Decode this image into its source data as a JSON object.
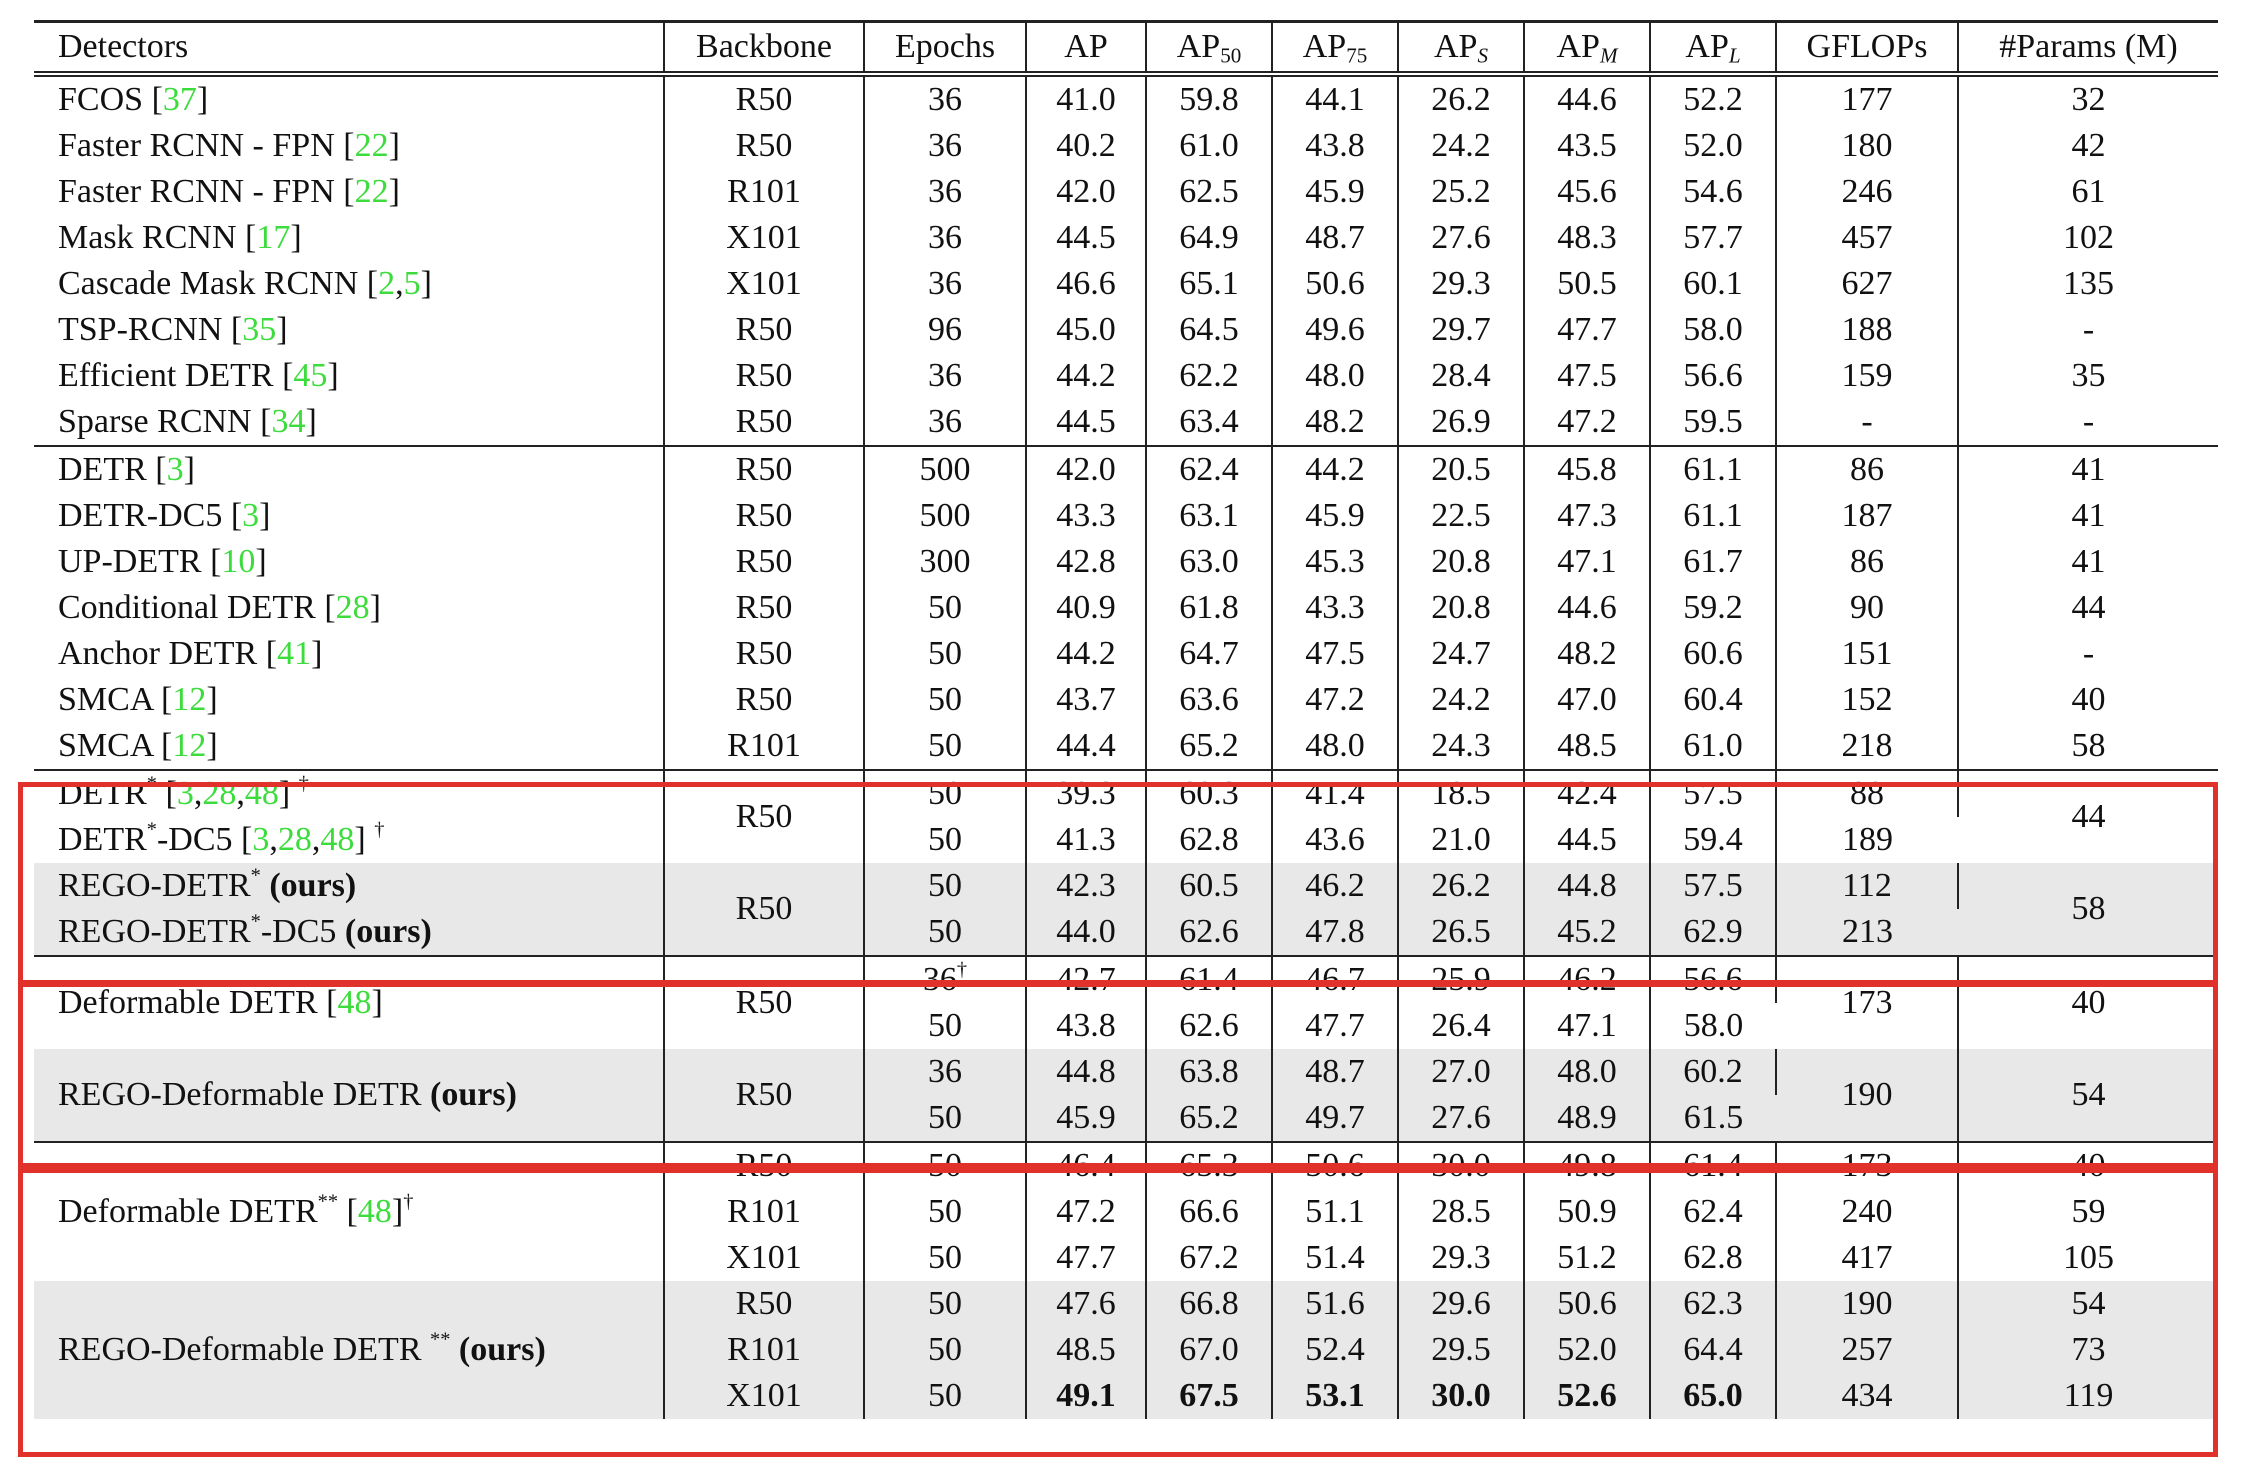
{
  "headers": [
    "Detectors",
    "Backbone",
    "Epochs",
    "AP",
    "AP",
    "AP",
    "AP",
    "AP",
    "AP",
    "GFLOPs",
    "#Params (M)"
  ],
  "header_subs": [
    "50",
    "75",
    "S",
    "M",
    "L"
  ],
  "marks": {
    "star": "*",
    "dstar": "**",
    "dagger": "†",
    "ours": "(ours)",
    "lbr": "[",
    "rbr": "]",
    "comma": ","
  },
  "top_rows": [
    {
      "name": "FCOS",
      "refs": [
        "37"
      ],
      "backbone": "R50",
      "epochs": "36",
      "vals": [
        "41.0",
        "59.8",
        "44.1",
        "26.2",
        "44.6",
        "52.2",
        "177",
        "32"
      ]
    },
    {
      "name": "Faster RCNN - FPN",
      "refs": [
        "22"
      ],
      "backbone": "R50",
      "epochs": "36",
      "vals": [
        "40.2",
        "61.0",
        "43.8",
        "24.2",
        "43.5",
        "52.0",
        "180",
        "42"
      ]
    },
    {
      "name": "Faster RCNN - FPN",
      "refs": [
        "22"
      ],
      "backbone": "R101",
      "epochs": "36",
      "vals": [
        "42.0",
        "62.5",
        "45.9",
        "25.2",
        "45.6",
        "54.6",
        "246",
        "61"
      ]
    },
    {
      "name": "Mask RCNN",
      "refs": [
        "17"
      ],
      "backbone": "X101",
      "epochs": "36",
      "vals": [
        "44.5",
        "64.9",
        "48.7",
        "27.6",
        "48.3",
        "57.7",
        "457",
        "102"
      ]
    },
    {
      "name": "Cascade Mask RCNN",
      "refs": [
        "2",
        "5"
      ],
      "backbone": "X101",
      "epochs": "36",
      "vals": [
        "46.6",
        "65.1",
        "50.6",
        "29.3",
        "50.5",
        "60.1",
        "627",
        "135"
      ]
    },
    {
      "name": "TSP-RCNN",
      "refs": [
        "35"
      ],
      "backbone": "R50",
      "epochs": "96",
      "vals": [
        "45.0",
        "64.5",
        "49.6",
        "29.7",
        "47.7",
        "58.0",
        "188",
        "-"
      ]
    },
    {
      "name": "Efficient DETR",
      "refs": [
        "45"
      ],
      "backbone": "R50",
      "epochs": "36",
      "vals": [
        "44.2",
        "62.2",
        "48.0",
        "28.4",
        "47.5",
        "56.6",
        "159",
        "35"
      ]
    },
    {
      "name": "Sparse RCNN",
      "refs": [
        "34"
      ],
      "backbone": "R50",
      "epochs": "36",
      "vals": [
        "44.5",
        "63.4",
        "48.2",
        "26.9",
        "47.2",
        "59.5",
        "-",
        "-"
      ]
    }
  ],
  "mid_rows": [
    {
      "name": "DETR",
      "refs": [
        "3"
      ],
      "backbone": "R50",
      "epochs": "500",
      "vals": [
        "42.0",
        "62.4",
        "44.2",
        "20.5",
        "45.8",
        "61.1",
        "86",
        "41"
      ]
    },
    {
      "name": "DETR-DC5",
      "refs": [
        "3"
      ],
      "backbone": "R50",
      "epochs": "500",
      "vals": [
        "43.3",
        "63.1",
        "45.9",
        "22.5",
        "47.3",
        "61.1",
        "187",
        "41"
      ]
    },
    {
      "name": "UP-DETR",
      "refs": [
        "10"
      ],
      "backbone": "R50",
      "epochs": "300",
      "vals": [
        "42.8",
        "63.0",
        "45.3",
        "20.8",
        "47.1",
        "61.7",
        "86",
        "41"
      ]
    },
    {
      "name": "Conditional DETR",
      "refs": [
        "28"
      ],
      "backbone": "R50",
      "epochs": "50",
      "vals": [
        "40.9",
        "61.8",
        "43.3",
        "20.8",
        "44.6",
        "59.2",
        "90",
        "44"
      ]
    },
    {
      "name": "Anchor DETR",
      "refs": [
        "41"
      ],
      "backbone": "R50",
      "epochs": "50",
      "vals": [
        "44.2",
        "64.7",
        "47.5",
        "24.7",
        "48.2",
        "60.6",
        "151",
        "-"
      ]
    },
    {
      "name": "SMCA",
      "refs": [
        "12"
      ],
      "backbone": "R50",
      "epochs": "50",
      "vals": [
        "43.7",
        "63.6",
        "47.2",
        "24.2",
        "47.0",
        "60.4",
        "152",
        "40"
      ]
    },
    {
      "name": "SMCA",
      "refs": [
        "12"
      ],
      "backbone": "R101",
      "epochs": "50",
      "vals": [
        "44.4",
        "65.2",
        "48.0",
        "24.3",
        "48.5",
        "61.0",
        "218",
        "58"
      ]
    }
  ],
  "g1": {
    "a_backbone": "R50",
    "a_params": "44",
    "a_rows": [
      {
        "pre": "DETR",
        "post": "",
        "refs": [
          "3",
          "28",
          "48"
        ],
        "epochs": "50",
        "vals": [
          "39.3",
          "60.3",
          "41.4",
          "18.5",
          "42.4",
          "57.5"
        ],
        "gflops": "88"
      },
      {
        "pre": "DETR",
        "post": "-DC5",
        "refs": [
          "3",
          "28",
          "48"
        ],
        "epochs": "50",
        "vals": [
          "41.3",
          "62.8",
          "43.6",
          "21.0",
          "44.5",
          "59.4"
        ],
        "gflops": "189"
      }
    ],
    "b_backbone": "R50",
    "b_params": "58",
    "b_rows": [
      {
        "pre": "REGO-DETR",
        "post": "",
        "epochs": "50",
        "vals": [
          "42.3",
          "60.5",
          "46.2",
          "26.2",
          "44.8",
          "57.5"
        ],
        "gflops": "112"
      },
      {
        "pre": "REGO-DETR",
        "post": "-DC5",
        "epochs": "50",
        "vals": [
          "44.0",
          "62.6",
          "47.8",
          "26.5",
          "45.2",
          "62.9"
        ],
        "gflops": "213"
      }
    ]
  },
  "g2": {
    "a_name": "Deformable DETR",
    "a_refs": [
      "48"
    ],
    "a_backbone": "R50",
    "a_gflops": "173",
    "a_params": "40",
    "a_rows": [
      {
        "epochs": "36",
        "vals": [
          "42.7",
          "61.4",
          "46.7",
          "25.9",
          "46.2",
          "56.6"
        ]
      },
      {
        "epochs": "50",
        "vals": [
          "43.8",
          "62.6",
          "47.7",
          "26.4",
          "47.1",
          "58.0"
        ]
      }
    ],
    "b_name": "REGO-Deformable DETR",
    "b_backbone": "R50",
    "b_gflops": "190",
    "b_params": "54",
    "b_rows": [
      {
        "epochs": "36",
        "vals": [
          "44.8",
          "63.8",
          "48.7",
          "27.0",
          "48.0",
          "60.2"
        ]
      },
      {
        "epochs": "50",
        "vals": [
          "45.9",
          "65.2",
          "49.7",
          "27.6",
          "48.9",
          "61.5"
        ]
      }
    ]
  },
  "g3": {
    "a_name": "Deformable DETR",
    "a_refs": [
      "48"
    ],
    "a_rows": [
      {
        "backbone": "R50",
        "epochs": "50",
        "vals": [
          "46.4",
          "65.3",
          "50.6",
          "30.0",
          "49.8",
          "61.4",
          "173",
          "40"
        ]
      },
      {
        "backbone": "R101",
        "epochs": "50",
        "vals": [
          "47.2",
          "66.6",
          "51.1",
          "28.5",
          "50.9",
          "62.4",
          "240",
          "59"
        ]
      },
      {
        "backbone": "X101",
        "epochs": "50",
        "vals": [
          "47.7",
          "67.2",
          "51.4",
          "29.3",
          "51.2",
          "62.8",
          "417",
          "105"
        ]
      }
    ],
    "b_name": "REGO-Deformable DETR",
    "b_rows": [
      {
        "backbone": "R50",
        "epochs": "50",
        "vals": [
          "47.6",
          "66.8",
          "51.6",
          "29.6",
          "50.6",
          "62.3",
          "190",
          "54"
        ]
      },
      {
        "backbone": "R101",
        "epochs": "50",
        "vals": [
          "48.5",
          "67.0",
          "52.4",
          "29.5",
          "52.0",
          "64.4",
          "257",
          "73"
        ]
      },
      {
        "backbone": "X101",
        "epochs": "50",
        "vals": [
          "49.1",
          "67.5",
          "53.1",
          "30.0",
          "52.6",
          "65.0",
          "434",
          "119"
        ]
      }
    ]
  },
  "colors": {
    "ref": "#3ddc3d",
    "highlight_box": "#e0322a",
    "shade": "#e8e8e8"
  }
}
